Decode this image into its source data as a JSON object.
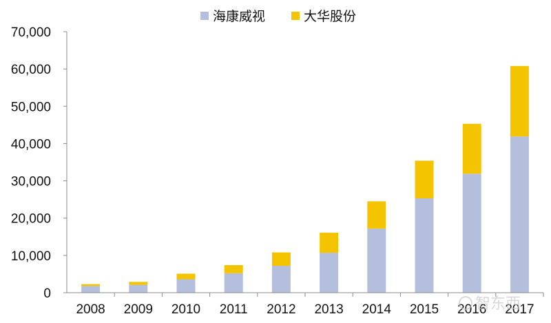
{
  "chart_data": {
    "type": "bar",
    "stacked": true,
    "categories": [
      "2008",
      "2009",
      "2010",
      "2011",
      "2012",
      "2013",
      "2014",
      "2015",
      "2016",
      "2017"
    ],
    "series": [
      {
        "name": "海康威视",
        "color": "#b4bedd",
        "values": [
          1800,
          2100,
          3600,
          5200,
          7200,
          10700,
          17200,
          25300,
          31900,
          41900
        ]
      },
      {
        "name": "大华股份",
        "color": "#f5c400",
        "values": [
          500,
          800,
          1500,
          2200,
          3600,
          5400,
          7300,
          10100,
          13400,
          18900
        ]
      }
    ],
    "ylim": [
      0,
      70000
    ],
    "yticks": [
      0,
      10000,
      20000,
      30000,
      40000,
      50000,
      60000,
      70000
    ],
    "ytick_labels": [
      "0",
      "10,000",
      "20,000",
      "30,000",
      "40,000",
      "50,000",
      "60,000",
      "70,000"
    ],
    "xlabel": "",
    "ylabel": "",
    "title": "",
    "grid": false,
    "legend_position": "top-center"
  },
  "watermark": {
    "text": "智东西",
    "icon": "watermark-logo-icon"
  }
}
